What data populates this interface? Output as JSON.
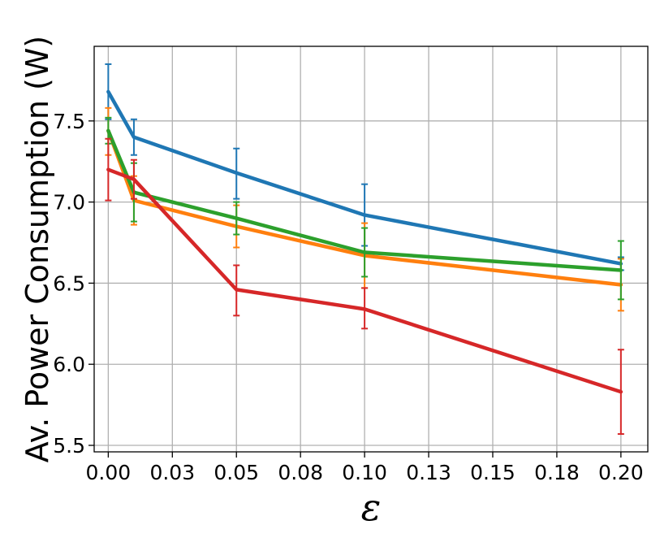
{
  "chart_data": {
    "type": "line",
    "xlabel": "ε",
    "ylabel": "Av. Power Consumption (W)",
    "title": "",
    "grid": true,
    "xlim": [
      -0.0055,
      0.2105
    ],
    "ylim": [
      5.46,
      7.96
    ],
    "x_ticks": [
      0.0,
      0.025,
      0.05,
      0.075,
      0.1,
      0.125,
      0.15,
      0.175,
      0.2
    ],
    "x_tick_labels": [
      "0.00",
      "0.03",
      "0.05",
      "0.08",
      "0.10",
      "0.13",
      "0.15",
      "0.18",
      "0.20"
    ],
    "y_ticks": [
      5.5,
      6.0,
      6.5,
      7.0,
      7.5
    ],
    "y_tick_labels": [
      "5.5",
      "6.0",
      "6.5",
      "7.0",
      "7.5"
    ],
    "x": [
      0.0,
      0.01,
      0.05,
      0.1,
      0.2
    ],
    "series": [
      {
        "color": "#1f77b4",
        "values": [
          7.68,
          7.4,
          7.18,
          6.92,
          6.62
        ],
        "err_low": [
          7.51,
          7.29,
          7.02,
          6.73,
          6.58
        ],
        "err_high": [
          7.85,
          7.51,
          7.33,
          7.11,
          6.66
        ]
      },
      {
        "color": "#ff7f0e",
        "values": [
          7.44,
          7.01,
          6.85,
          6.67,
          6.49
        ],
        "err_low": [
          7.29,
          6.86,
          6.72,
          6.47,
          6.33
        ],
        "err_high": [
          7.58,
          7.16,
          6.98,
          6.87,
          6.65
        ]
      },
      {
        "color": "#2ca02c",
        "values": [
          7.44,
          7.06,
          6.9,
          6.69,
          6.58
        ],
        "err_low": [
          7.36,
          6.88,
          6.8,
          6.54,
          6.4
        ],
        "err_high": [
          7.52,
          7.24,
          7.0,
          6.84,
          6.76
        ]
      },
      {
        "color": "#d62728",
        "values": [
          7.2,
          7.14,
          6.46,
          6.34,
          5.83
        ],
        "err_low": [
          7.01,
          7.02,
          6.3,
          6.22,
          5.57
        ],
        "err_high": [
          7.39,
          7.26,
          6.61,
          6.47,
          6.09
        ]
      }
    ]
  }
}
